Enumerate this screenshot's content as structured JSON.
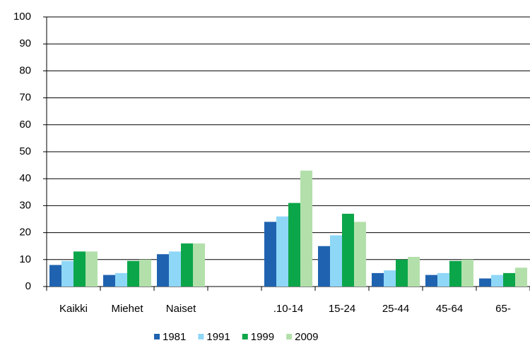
{
  "chart_data": {
    "type": "bar",
    "categories": [
      "Kaikki",
      "Miehet",
      "Naiset",
      null,
      ".10-14",
      "15-24",
      "25-44",
      "45-64",
      "65-"
    ],
    "series": [
      {
        "name": "1981",
        "color": "#1f63b0",
        "values": [
          8,
          4.3,
          12,
          null,
          24,
          15,
          5,
          4.3,
          3
        ]
      },
      {
        "name": "1991",
        "color": "#8fd7f7",
        "values": [
          9.5,
          5,
          13,
          null,
          26,
          19,
          6,
          5,
          4.3
        ]
      },
      {
        "name": "1999",
        "color": "#0ca64a",
        "values": [
          13,
          9.5,
          16,
          null,
          31,
          27,
          10,
          9.5,
          5
        ]
      },
      {
        "name": "2009",
        "color": "#b3e0aa",
        "values": [
          13,
          10,
          16,
          null,
          43,
          24,
          11,
          10,
          7
        ]
      }
    ],
    "ylim": [
      0,
      100
    ],
    "yticks": [
      0,
      10,
      20,
      30,
      40,
      50,
      60,
      70,
      80,
      90,
      100
    ],
    "grid": true,
    "legend": "bottom"
  }
}
